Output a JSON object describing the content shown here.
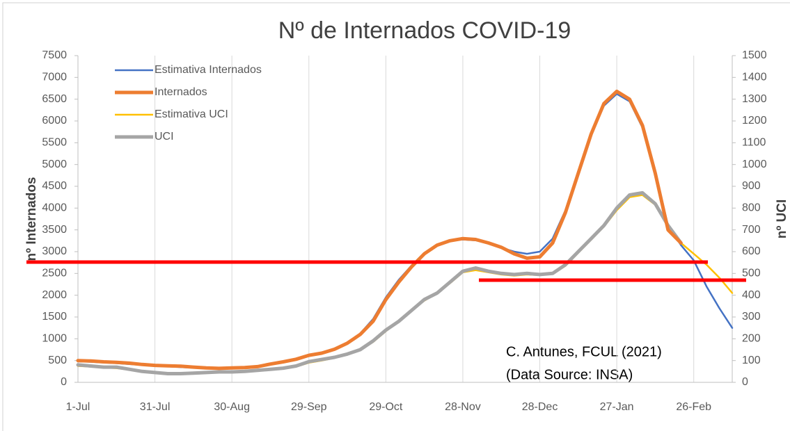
{
  "chart_data": {
    "type": "line",
    "title": "Nº de Internados COVID-19",
    "y_label": "nº Internados",
    "y2_label": "nº UCI",
    "annotations": [
      "C. Antunes, FCUL (2021)",
      "(Data Source: INSA)"
    ],
    "categories": [
      "1-Jul",
      null,
      null,
      null,
      null,
      null,
      "31-Jul",
      null,
      null,
      null,
      null,
      null,
      "30-Aug",
      null,
      null,
      null,
      null,
      null,
      "29-Sep",
      null,
      null,
      null,
      null,
      null,
      "29-Oct",
      null,
      null,
      null,
      null,
      null,
      "28-Nov",
      null,
      null,
      null,
      null,
      null,
      "28-Dec",
      null,
      null,
      null,
      null,
      null,
      "27-Jan",
      null,
      null,
      null,
      null,
      null,
      "26-Feb",
      null,
      null,
      null
    ],
    "series": [
      {
        "name": "Estimativa Internados",
        "color": "#4472c4",
        "axis": "y",
        "values": [
          480,
          470,
          455,
          440,
          420,
          400,
          380,
          365,
          350,
          335,
          320,
          315,
          320,
          335,
          360,
          410,
          470,
          540,
          610,
          670,
          760,
          900,
          1120,
          1450,
          1950,
          2350,
          2680,
          2970,
          3160,
          3250,
          3280,
          3260,
          3190,
          3090,
          3000,
          2950,
          3000,
          3300,
          3950,
          4850,
          5700,
          6350,
          6620,
          6450,
          5850,
          4800,
          3600,
          3150,
          2800,
          2200,
          1700,
          1250
        ]
      },
      {
        "name": "Internados",
        "color": "#ed7d31",
        "axis": "y",
        "values": [
          500,
          490,
          470,
          460,
          440,
          410,
          390,
          380,
          370,
          350,
          330,
          320,
          330,
          340,
          360,
          420,
          470,
          530,
          620,
          670,
          760,
          900,
          1100,
          1400,
          1900,
          2300,
          2650,
          2950,
          3150,
          3250,
          3300,
          3280,
          3200,
          3100,
          2950,
          2850,
          2880,
          3200,
          3900,
          4800,
          5700,
          6400,
          6680,
          6500,
          5900,
          4800,
          3500,
          3200,
          null,
          null,
          null,
          null
        ]
      },
      {
        "name": "Estimativa UCI",
        "color": "#ffc000",
        "axis": "y2",
        "values": [
          75,
          72,
          68,
          65,
          58,
          50,
          45,
          42,
          40,
          42,
          44,
          47,
          48,
          50,
          54,
          58,
          63,
          72,
          90,
          100,
          112,
          128,
          150,
          185,
          235,
          280,
          330,
          375,
          410,
          455,
          505,
          515,
          505,
          495,
          490,
          495,
          492,
          498,
          535,
          595,
          655,
          715,
          790,
          850,
          860,
          815,
          720,
          640,
          590,
          540,
          480,
          410
        ]
      },
      {
        "name": "UCI",
        "color": "#a5a5a5",
        "axis": "y2",
        "values": [
          80,
          75,
          70,
          70,
          60,
          50,
          45,
          40,
          40,
          42,
          45,
          48,
          48,
          50,
          55,
          60,
          65,
          75,
          95,
          105,
          115,
          130,
          150,
          190,
          240,
          280,
          330,
          380,
          410,
          460,
          510,
          525,
          510,
          500,
          495,
          500,
          495,
          500,
          540,
          600,
          660,
          720,
          800,
          860,
          870,
          820,
          720,
          640,
          null,
          null,
          null,
          null
        ]
      }
    ],
    "ylim": [
      0,
      7500
    ],
    "yticks": [
      0,
      500,
      1000,
      1500,
      2000,
      2500,
      3000,
      3500,
      4000,
      4500,
      5000,
      5500,
      6000,
      6500,
      7000,
      7500
    ],
    "y2lim": [
      0,
      1500
    ],
    "y2ticks": [
      0,
      100,
      200,
      300,
      400,
      500,
      600,
      700,
      800,
      900,
      1000,
      1100,
      1200,
      1300,
      1400,
      1500
    ],
    "grid": true,
    "legend": "top-left"
  }
}
